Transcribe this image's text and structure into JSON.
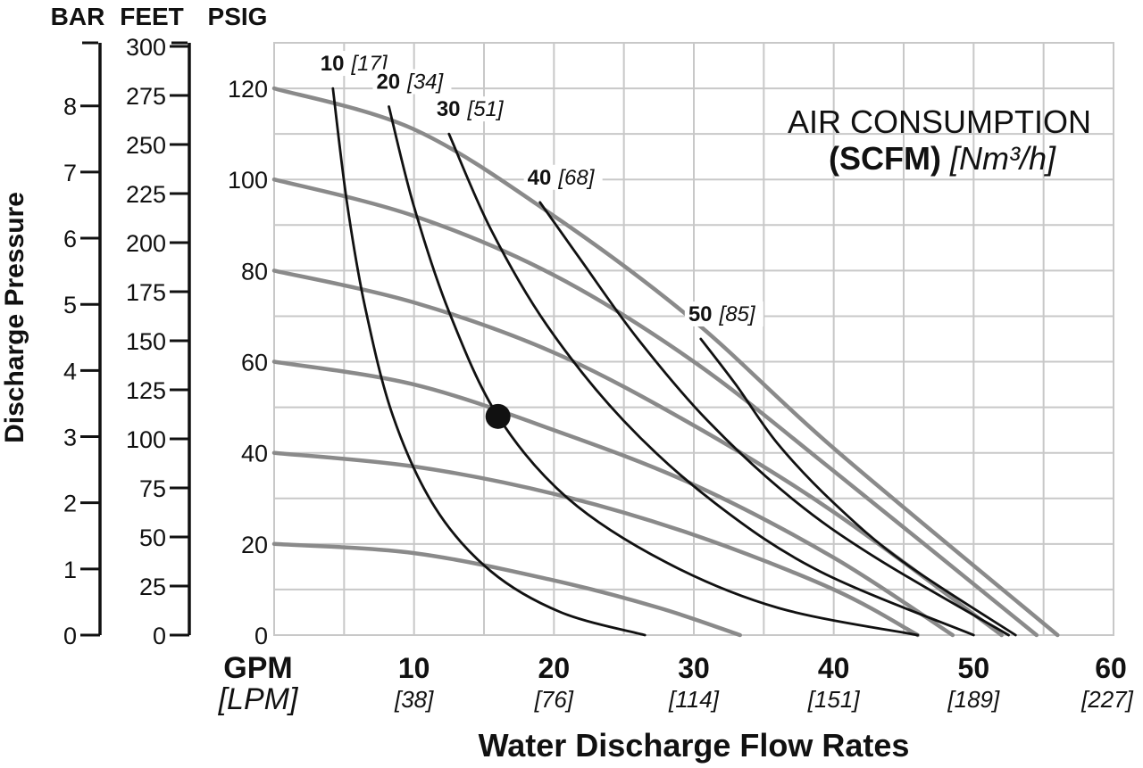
{
  "chart_data": {
    "type": "line",
    "title": "",
    "legend": {
      "line1": "AIR CONSUMPTION",
      "line2_bold": "(SCFM)",
      "line2_italic": "[Nm³/h]",
      "placement": "top-right"
    },
    "xlabel": "Water Discharge Flow Rates",
    "x_unit_primary": "GPM",
    "x_unit_secondary": "[LPM]",
    "xlim": [
      0,
      60
    ],
    "x_ticks": [
      {
        "value": 10,
        "label": "10",
        "sub": "[38]"
      },
      {
        "value": 20,
        "label": "20",
        "sub": "[76]"
      },
      {
        "value": 30,
        "label": "30",
        "sub": "[114]"
      },
      {
        "value": 40,
        "label": "40",
        "sub": "[151]"
      },
      {
        "value": 50,
        "label": "50",
        "sub": "[189]"
      },
      {
        "value": 60,
        "label": "60",
        "sub": "[227]"
      }
    ],
    "ylabel": "Discharge Pressure",
    "ylim": [
      0,
      130
    ],
    "y_axes": [
      {
        "header": "BAR",
        "ticks": [
          "0",
          "1",
          "2",
          "3",
          "4",
          "5",
          "6",
          "7",
          "8"
        ],
        "values": [
          0,
          1,
          2,
          3,
          4,
          5,
          6,
          7,
          8
        ]
      },
      {
        "header": "FEET",
        "ticks": [
          "0",
          "25",
          "50",
          "75",
          "100",
          "125",
          "150",
          "175",
          "200",
          "225",
          "250",
          "275",
          "300"
        ],
        "values": [
          0,
          25,
          50,
          75,
          100,
          125,
          150,
          175,
          200,
          225,
          250,
          275,
          300
        ]
      },
      {
        "header": "PSIG",
        "ticks": [
          "0",
          "20",
          "40",
          "60",
          "80",
          "100",
          "120"
        ],
        "values": [
          0,
          20,
          40,
          60,
          80,
          100,
          120
        ]
      }
    ],
    "grid": true,
    "pressure_series": [
      {
        "x": [
          0,
          10,
          20,
          27.5,
          33.3
        ],
        "y": [
          20,
          18,
          12,
          6,
          0
        ]
      },
      {
        "x": [
          0,
          10,
          20,
          30,
          40,
          46
        ],
        "y": [
          40,
          37,
          31,
          22,
          10,
          0
        ]
      },
      {
        "x": [
          0,
          10,
          20,
          30,
          40,
          48.5
        ],
        "y": [
          60,
          55,
          45,
          33,
          17,
          0
        ]
      },
      {
        "x": [
          0,
          10,
          20,
          30,
          40,
          52
        ],
        "y": [
          80,
          73,
          62,
          46,
          27,
          0
        ]
      },
      {
        "x": [
          0,
          10,
          20,
          30,
          40,
          54.5
        ],
        "y": [
          100,
          92,
          79,
          60,
          36,
          0
        ]
      },
      {
        "x": [
          0,
          10,
          20,
          30,
          40,
          56
        ],
        "y": [
          120,
          111,
          92,
          69,
          41,
          0
        ]
      }
    ],
    "air_series": [
      {
        "name": "10",
        "sub": "[17]",
        "x": [
          4.2,
          5.2,
          6.5,
          8.5,
          11.5,
          15.5,
          20.5,
          26.5
        ],
        "y": [
          120,
          95,
          72,
          48,
          28,
          14,
          5,
          0
        ]
      },
      {
        "name": "20",
        "sub": "[34]",
        "x": [
          8.2,
          10,
          12.5,
          16,
          21,
          28,
          36,
          46
        ],
        "y": [
          116,
          94,
          71,
          48,
          30,
          16,
          6,
          0
        ]
      },
      {
        "name": "30",
        "sub": "[51]",
        "x": [
          12.5,
          15.5,
          19.5,
          25,
          31.5,
          39,
          50
        ],
        "y": [
          110,
          89,
          68,
          47,
          29,
          14,
          0
        ]
      },
      {
        "name": "40",
        "sub": "[68]",
        "x": [
          19,
          22,
          26,
          31,
          37,
          43,
          52.5
        ],
        "y": [
          95,
          82,
          65,
          47,
          30,
          17,
          0
        ]
      },
      {
        "name": "50",
        "sub": "[85]",
        "x": [
          30.5,
          33,
          36,
          40,
          45,
          53
        ],
        "y": [
          65,
          55,
          42,
          29,
          16,
          0
        ]
      }
    ],
    "operating_point": {
      "x": 16,
      "y": 48
    }
  }
}
